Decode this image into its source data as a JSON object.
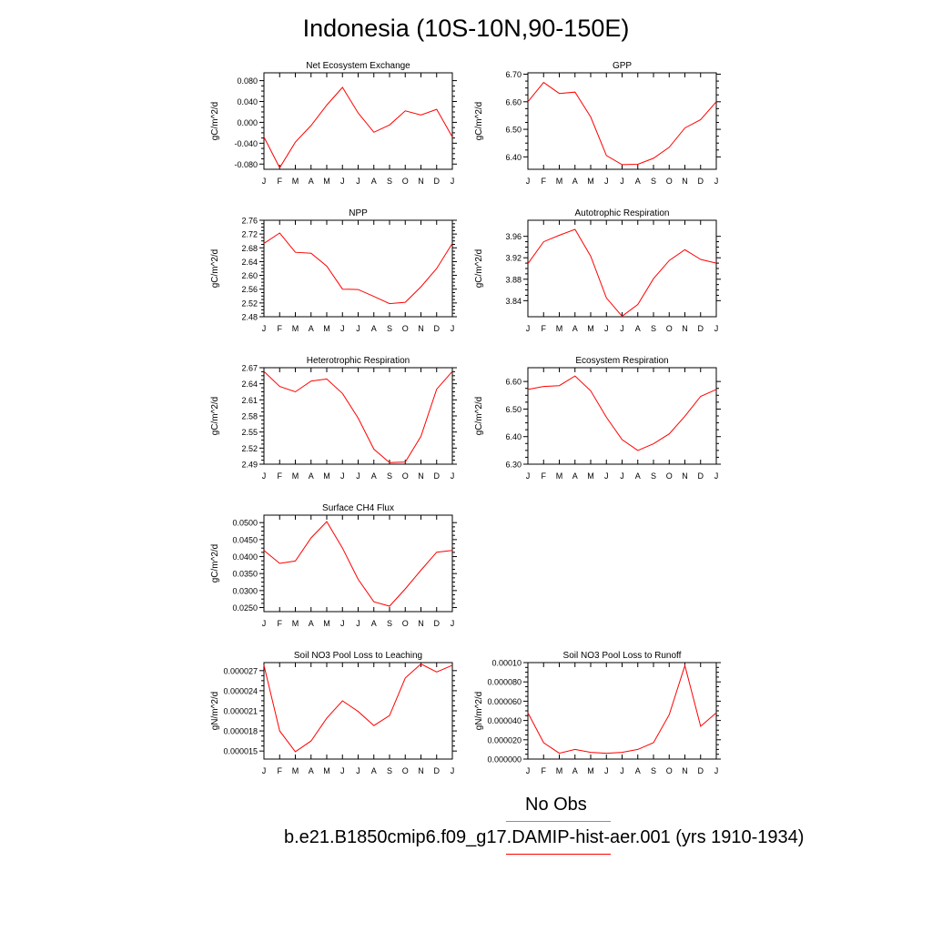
{
  "title": "Indonesia (10S-10N,90-150E)",
  "legend": {
    "obs_label": "No Obs",
    "obs_color": "#8080ff",
    "model_label": "b.e21.B1850cmip6.f09_g17.DAMIP-hist-aer.001 (yrs 1910-1934)",
    "model_color": "#ff0000"
  },
  "chart_data": [
    {
      "type": "line",
      "title": "Net Ecosystem Exchange",
      "ylabel": "gC/m^2/d",
      "categories": [
        "J",
        "F",
        "M",
        "A",
        "M",
        "J",
        "J",
        "A",
        "S",
        "O",
        "N",
        "D",
        "J"
      ],
      "ylim": [
        -0.09,
        0.095
      ],
      "yticks": [
        "-0.080",
        "-0.040",
        "0.000",
        "0.040",
        "0.080"
      ],
      "ytick_values": [
        -0.08,
        -0.04,
        0.0,
        0.04,
        0.08
      ],
      "series": [
        {
          "values": [
            -0.028,
            -0.087,
            -0.038,
            -0.006,
            0.033,
            0.067,
            0.018,
            -0.019,
            -0.005,
            0.022,
            0.014,
            0.025,
            -0.028
          ],
          "color": "#ff0000"
        }
      ]
    },
    {
      "type": "line",
      "title": "GPP",
      "ylabel": "gC/m^2/d",
      "categories": [
        "J",
        "F",
        "M",
        "A",
        "M",
        "J",
        "J",
        "A",
        "S",
        "O",
        "N",
        "D",
        "J"
      ],
      "ylim": [
        6.355,
        6.705
      ],
      "yticks": [
        "6.40",
        "6.50",
        "6.60",
        "6.70"
      ],
      "ytick_values": [
        6.4,
        6.5,
        6.6,
        6.7
      ],
      "series": [
        {
          "values": [
            6.6,
            6.67,
            6.63,
            6.635,
            6.545,
            6.405,
            6.372,
            6.373,
            6.395,
            6.435,
            6.505,
            6.535,
            6.6
          ],
          "color": "#ff0000"
        }
      ]
    },
    {
      "type": "line",
      "title": "NPP",
      "ylabel": "gC/m^2/d",
      "categories": [
        "J",
        "F",
        "M",
        "A",
        "M",
        "J",
        "J",
        "A",
        "S",
        "O",
        "N",
        "D",
        "J"
      ],
      "ylim": [
        2.48,
        2.76
      ],
      "yticks": [
        "2.48",
        "2.52",
        "2.56",
        "2.60",
        "2.64",
        "2.68",
        "2.72",
        "2.76"
      ],
      "ytick_values": [
        2.48,
        2.52,
        2.56,
        2.6,
        2.64,
        2.68,
        2.72,
        2.76
      ],
      "series": [
        {
          "values": [
            2.693,
            2.723,
            2.667,
            2.664,
            2.627,
            2.56,
            2.559,
            2.539,
            2.518,
            2.522,
            2.567,
            2.62,
            2.693
          ],
          "color": "#ff0000"
        }
      ]
    },
    {
      "type": "line",
      "title": "Autotrophic Respiration",
      "ylabel": "gC/m^2/d",
      "categories": [
        "J",
        "F",
        "M",
        "A",
        "M",
        "J",
        "J",
        "A",
        "S",
        "O",
        "N",
        "D",
        "J"
      ],
      "ylim": [
        3.81,
        3.99
      ],
      "yticks": [
        "3.84",
        "3.88",
        "3.92",
        "3.96"
      ],
      "ytick_values": [
        3.84,
        3.88,
        3.92,
        3.96
      ],
      "series": [
        {
          "values": [
            3.909,
            3.95,
            3.962,
            3.973,
            3.923,
            3.845,
            3.811,
            3.833,
            3.881,
            3.915,
            3.935,
            3.917,
            3.91
          ],
          "color": "#ff0000"
        }
      ]
    },
    {
      "type": "line",
      "title": "Heterotrophic Respiration",
      "ylabel": "gC/m^2/d",
      "categories": [
        "J",
        "F",
        "M",
        "A",
        "M",
        "J",
        "J",
        "A",
        "S",
        "O",
        "N",
        "D",
        "J"
      ],
      "ylim": [
        2.49,
        2.67
      ],
      "yticks": [
        "2.49",
        "2.52",
        "2.55",
        "2.58",
        "2.61",
        "2.64",
        "2.67"
      ],
      "ytick_values": [
        2.49,
        2.52,
        2.55,
        2.58,
        2.61,
        2.64,
        2.67
      ],
      "series": [
        {
          "values": [
            2.663,
            2.635,
            2.625,
            2.645,
            2.649,
            2.622,
            2.576,
            2.518,
            2.493,
            2.494,
            2.542,
            2.63,
            2.663
          ],
          "color": "#ff0000"
        }
      ]
    },
    {
      "type": "line",
      "title": "Ecosystem Respiration",
      "ylabel": "gC/m^2/d",
      "categories": [
        "J",
        "F",
        "M",
        "A",
        "M",
        "J",
        "J",
        "A",
        "S",
        "O",
        "N",
        "D",
        "J"
      ],
      "ylim": [
        6.3,
        6.65
      ],
      "yticks": [
        "6.30",
        "6.40",
        "6.50",
        "6.60"
      ],
      "ytick_values": [
        6.3,
        6.4,
        6.5,
        6.6
      ],
      "series": [
        {
          "values": [
            6.571,
            6.582,
            6.585,
            6.62,
            6.566,
            6.47,
            6.389,
            6.35,
            6.374,
            6.41,
            6.474,
            6.546,
            6.571
          ],
          "color": "#ff0000"
        }
      ]
    },
    {
      "type": "line",
      "title": "Surface CH4 Flux",
      "ylabel": "gC/m^2/d",
      "categories": [
        "J",
        "F",
        "M",
        "A",
        "M",
        "J",
        "J",
        "A",
        "S",
        "O",
        "N",
        "D",
        "J"
      ],
      "ylim": [
        0.0238,
        0.0522
      ],
      "yticks": [
        "0.0250",
        "0.0300",
        "0.0350",
        "0.0400",
        "0.0450",
        "0.0500"
      ],
      "ytick_values": [
        0.025,
        0.03,
        0.035,
        0.04,
        0.045,
        0.05
      ],
      "series": [
        {
          "values": [
            0.0418,
            0.038,
            0.0387,
            0.0455,
            0.0503,
            0.0425,
            0.0333,
            0.0267,
            0.0254,
            0.0305,
            0.036,
            0.0413,
            0.0418
          ],
          "color": "#ff0000"
        }
      ]
    },
    {
      "type": "line",
      "title": "Soil NO3 Pool Loss to Leaching",
      "ylabel": "gN/m^2/d",
      "categories": [
        "J",
        "F",
        "M",
        "A",
        "M",
        "J",
        "J",
        "A",
        "S",
        "O",
        "N",
        "D",
        "J"
      ],
      "ylim": [
        1.38e-05,
        2.82e-05
      ],
      "yticks": [
        "0.000015",
        "0.000018",
        "0.000021",
        "0.000024",
        "0.000027"
      ],
      "ytick_values": [
        1.5e-05,
        1.8e-05,
        2.1e-05,
        2.4e-05,
        2.7e-05
      ],
      "series": [
        {
          "values": [
            2.78e-05,
            1.8e-05,
            1.49e-05,
            1.65e-05,
            1.99e-05,
            2.25e-05,
            2.09e-05,
            1.88e-05,
            2.03e-05,
            2.59e-05,
            2.8e-05,
            2.68e-05,
            2.78e-05
          ],
          "color": "#ff0000"
        }
      ]
    },
    {
      "type": "line",
      "title": "Soil NO3 Pool Loss to Runoff",
      "ylabel": "gN/m^2/d",
      "categories": [
        "J",
        "F",
        "M",
        "A",
        "M",
        "J",
        "J",
        "A",
        "S",
        "O",
        "N",
        "D",
        "J"
      ],
      "ylim": [
        0.0,
        0.0001
      ],
      "yticks": [
        "0.000000",
        "0.000020",
        "0.000040",
        "0.000060",
        "0.000080",
        "0.00010"
      ],
      "ytick_values": [
        0.0,
        2e-05,
        4e-05,
        6e-05,
        8e-05,
        0.0001
      ],
      "series": [
        {
          "values": [
            4.8e-05,
            1.7e-05,
            6e-06,
            1e-05,
            7e-06,
            6e-06,
            7e-06,
            1e-05,
            1.7e-05,
            4.6e-05,
            9.7e-05,
            3.4e-05,
            4.8e-05
          ],
          "color": "#ff0000"
        }
      ]
    }
  ]
}
